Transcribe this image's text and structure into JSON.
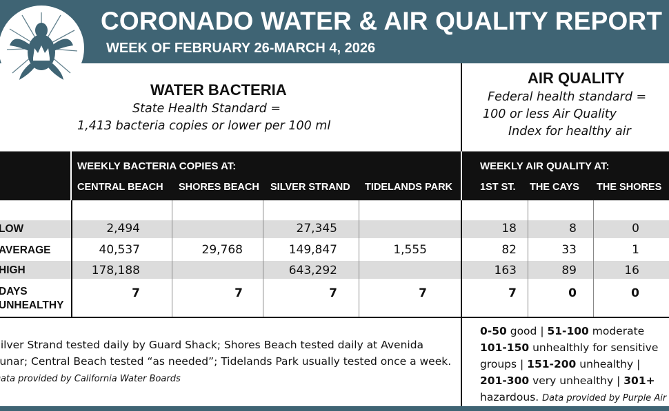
{
  "header": {
    "title": "CORONADO WATER & AIR QUALITY REPORT",
    "subtitle": "WEEK OF FEBRUARY 26-MARCH 4, 2026",
    "logo_icon": "sea-turtle-crown-icon",
    "background_color": "#3f6474"
  },
  "water": {
    "title": "WATER BACTERIA",
    "standard_line1": "State Health Standard  =",
    "standard_line2": "1,413 bacteria copies or lower per 100 ml",
    "band_label": "WEEKLY BACTERIA COPIES AT:",
    "columns": [
      "CENTRAL BEACH",
      "SHORES BEACH",
      "SILVER STRAND",
      "TIDELANDS PARK"
    ],
    "rows": {
      "low": [
        "2,494",
        "",
        "27,345",
        ""
      ],
      "average": [
        "40,537",
        "29,768",
        "149,847",
        "1,555"
      ],
      "high": [
        "178,188",
        "",
        "643,292",
        ""
      ],
      "days_unhealthy": [
        "7",
        "7",
        "7",
        "7"
      ]
    },
    "footnote": "Silver Strand tested daily by Guard Shack; Shores Beach tested daily at Avenida Lunar; Central Beach tested “as needed”; Tidelands Park usually tested once a week.",
    "footnote_source": "Data provided by California Water Boards"
  },
  "air": {
    "title": "AIR QUALITY",
    "standard_line1": "Federal health standard =",
    "standard_line2": "100 or less Air Quality",
    "standard_line3": "Index for healthy air",
    "band_label": "WEEKLY AIR QUALITY AT:",
    "columns": [
      "1ST ST.",
      "THE CAYS",
      "THE SHORES"
    ],
    "rows": {
      "low": [
        "18",
        "8",
        "0"
      ],
      "average": [
        "82",
        "33",
        "1"
      ],
      "high": [
        "163",
        "89",
        "16"
      ],
      "days_unhealthy": [
        "7",
        "0",
        "0"
      ]
    },
    "legend": [
      {
        "range": "0-50",
        "label": "good"
      },
      {
        "range": "51-100",
        "label": "moderate"
      },
      {
        "range": "101-150",
        "label": "unhealthly for sensitive groups"
      },
      {
        "range": "151-200",
        "label": "unhealthy"
      },
      {
        "range": "201-300",
        "label": "very unhealthy"
      },
      {
        "range": "301+",
        "label": "hazardous."
      }
    ],
    "legend_source": "Data provided by Purple Air"
  },
  "row_labels": {
    "low": "LOW",
    "average": "AVERAGE",
    "high": "HIGH",
    "days_line1": "DAYS",
    "days_line2": "UNHEALTHY"
  }
}
